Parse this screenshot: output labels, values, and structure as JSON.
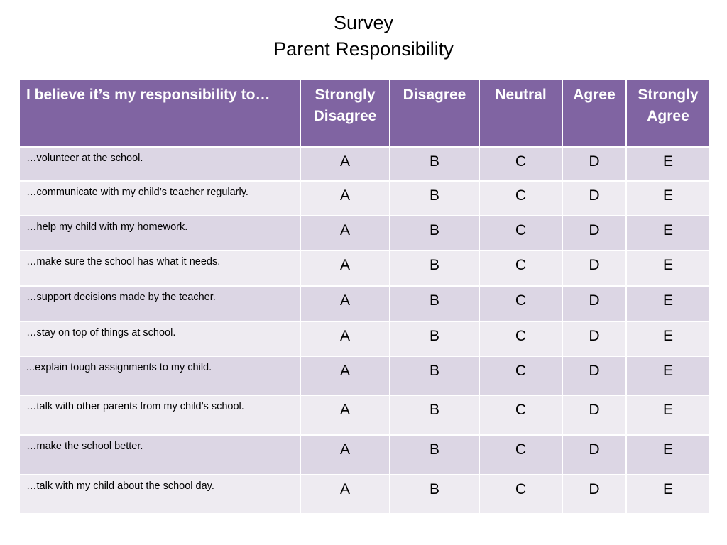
{
  "title": {
    "line1": "Survey",
    "line2": "Parent Responsibility"
  },
  "table": {
    "columns": [
      "I believe it’s my responsibility to…",
      "Strongly Disagree",
      "Disagree",
      "Neutral",
      "Agree",
      "Strongly Agree"
    ],
    "rows": [
      {
        "statement": "…volunteer at the school.",
        "choices": [
          "A",
          "B",
          "C",
          "D",
          "E"
        ]
      },
      {
        "statement": "…communicate with my child’s teacher regularly.",
        "choices": [
          "A",
          "B",
          "C",
          "D",
          "E"
        ]
      },
      {
        "statement": "…help my child with my homework.",
        "choices": [
          "A",
          "B",
          "C",
          "D",
          "E"
        ]
      },
      {
        "statement": "…make sure the school has what it needs.",
        "choices": [
          "A",
          "B",
          "C",
          "D",
          "E"
        ]
      },
      {
        "statement": "…support decisions made by the teacher.",
        "choices": [
          "A",
          "B",
          "C",
          "D",
          "E"
        ]
      },
      {
        "statement": "…stay on top of things at school.",
        "choices": [
          "A",
          "B",
          "C",
          "D",
          "E"
        ]
      },
      {
        "statement": "...explain tough assignments to my child.",
        "choices": [
          "A",
          "B",
          "C",
          "D",
          "E"
        ]
      },
      {
        "statement": "…talk with other parents from my child’s school.",
        "choices": [
          "A",
          "B",
          "C",
          "D",
          "E"
        ]
      },
      {
        "statement": "…make the school better.",
        "choices": [
          "A",
          "B",
          "C",
          "D",
          "E"
        ]
      },
      {
        "statement": "…talk with my child about the school day.",
        "choices": [
          "A",
          "B",
          "C",
          "D",
          "E"
        ]
      }
    ]
  },
  "colors": {
    "header_bg": "#8064a2",
    "header_text": "#ffffff",
    "row_odd": "#dcd6e4",
    "row_even": "#eeebf1"
  }
}
